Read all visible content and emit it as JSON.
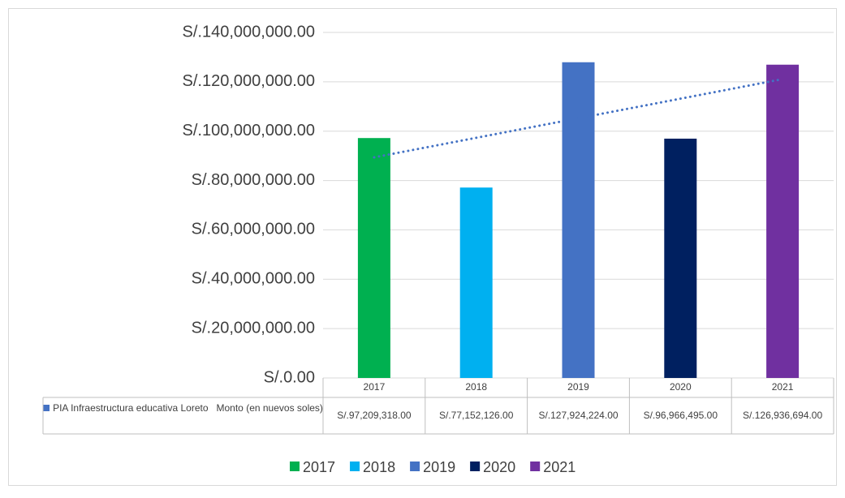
{
  "chart_data": {
    "type": "bar",
    "categories": [
      "2017",
      "2018",
      "2019",
      "2020",
      "2021"
    ],
    "values": [
      97209318,
      77152126,
      127924224,
      96966495,
      126936694
    ],
    "value_labels": [
      "S/.97,209,318.00",
      "S/.77,152,126.00",
      "S/.127,924,224.00",
      "S/.96,966,495.00",
      "S/.126,936,694.00"
    ],
    "colors": [
      "#00b050",
      "#00b0f0",
      "#4472c4",
      "#002060",
      "#7030a0"
    ],
    "series_name": "PIA Infraestructura educativa Loreto   Monto (en nuevos soles)",
    "series_color": "#4472c4",
    "ylim": [
      0,
      140000000
    ],
    "yticks": [
      {
        "value": 0,
        "label": "S/.0.00"
      },
      {
        "value": 20000000,
        "label": "S/.20,000,000.00"
      },
      {
        "value": 40000000,
        "label": "S/.40,000,000.00"
      },
      {
        "value": 60000000,
        "label": "S/.60,000,000.00"
      },
      {
        "value": 80000000,
        "label": "S/.80,000,000.00"
      },
      {
        "value": 100000000,
        "label": "S/.100,000,000.00"
      },
      {
        "value": 120000000,
        "label": "S/.120,000,000.00"
      },
      {
        "value": 140000000,
        "label": "S/.140,000,000.00"
      }
    ],
    "grid": true,
    "trendline": {
      "type": "linear",
      "color": "#4472c4"
    },
    "legend": "bottom"
  }
}
